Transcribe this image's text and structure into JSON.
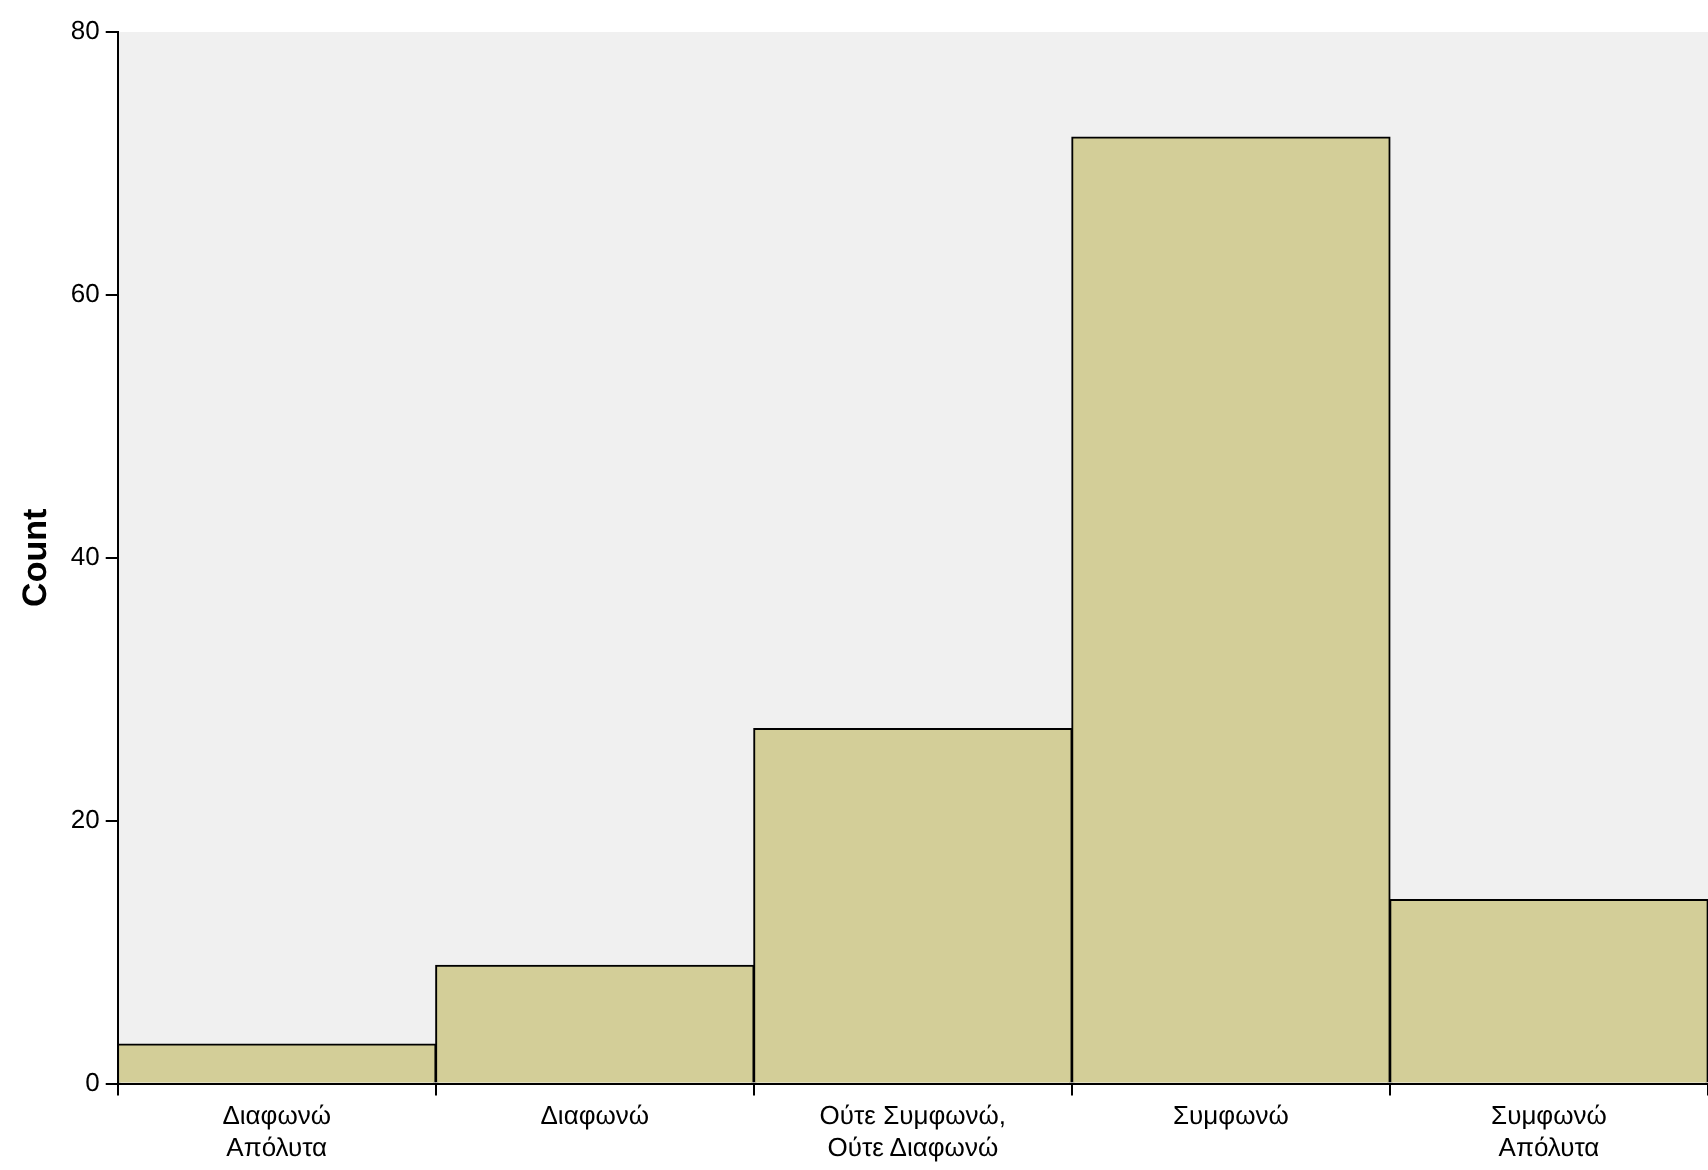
{
  "chart_data": {
    "type": "bar",
    "ylabel": "Count",
    "categories": [
      "Διαφωνώ Απόλυτα",
      "Διαφωνώ",
      "Ούτε Συμφωνώ, Ούτε Διαφωνώ",
      "Συμφωνώ",
      "Συμφωνώ Απόλυτα"
    ],
    "values": [
      3,
      9,
      27,
      72,
      14
    ],
    "color": "#d3ce98",
    "ylim": [
      0,
      80
    ],
    "yticks": [
      0,
      20,
      40,
      60,
      80
    ],
    "grid": false,
    "legend": false
  }
}
